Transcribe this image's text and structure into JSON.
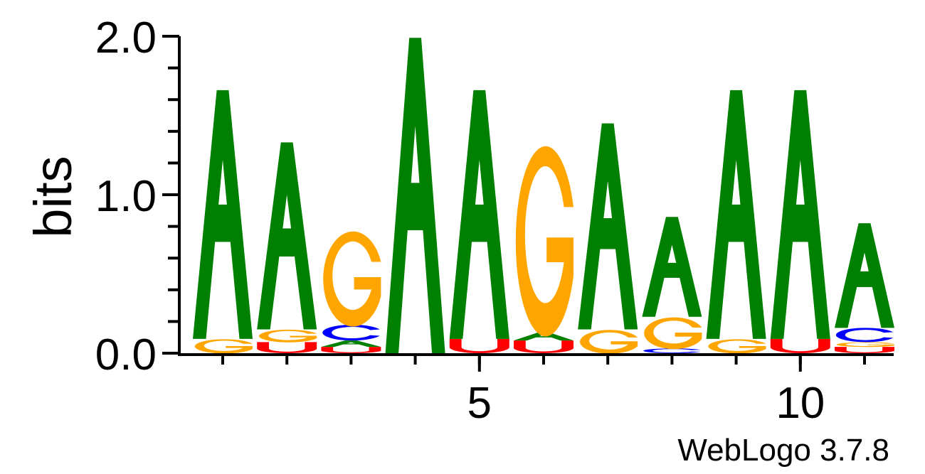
{
  "chart_data": {
    "type": "sequence-logo",
    "ylabel": "bits",
    "ylim": [
      0,
      2
    ],
    "y_ticks": [
      "0.0",
      "1.0",
      "2.0"
    ],
    "x_ticks": [
      {
        "position": 5,
        "label": "5"
      },
      {
        "position": 10,
        "label": "10"
      }
    ],
    "credit": "WebLogo 3.7.8",
    "colors": {
      "A": "#008000",
      "G": "#FFA500",
      "U": "#FF0000",
      "C": "#0000FF"
    },
    "positions": [
      {
        "index": 1,
        "stack": [
          {
            "base": "G",
            "bits": 0.09
          },
          {
            "base": "A",
            "bits": 1.57
          }
        ]
      },
      {
        "index": 2,
        "stack": [
          {
            "base": "U",
            "bits": 0.07
          },
          {
            "base": "G",
            "bits": 0.08
          },
          {
            "base": "A",
            "bits": 1.18
          }
        ]
      },
      {
        "index": 3,
        "stack": [
          {
            "base": "U",
            "bits": 0.04
          },
          {
            "base": "A",
            "bits": 0.04
          },
          {
            "base": "C",
            "bits": 0.1
          },
          {
            "base": "G",
            "bits": 0.6
          }
        ]
      },
      {
        "index": 4,
        "stack": [
          {
            "base": "A",
            "bits": 1.99
          }
        ]
      },
      {
        "index": 5,
        "stack": [
          {
            "base": "U",
            "bits": 0.09
          },
          {
            "base": "A",
            "bits": 1.57
          }
        ]
      },
      {
        "index": 6,
        "stack": [
          {
            "base": "U",
            "bits": 0.08
          },
          {
            "base": "A",
            "bits": 0.05
          },
          {
            "base": "G",
            "bits": 1.2
          }
        ]
      },
      {
        "index": 7,
        "stack": [
          {
            "base": "G",
            "bits": 0.15
          },
          {
            "base": "A",
            "bits": 1.3
          }
        ]
      },
      {
        "index": 8,
        "stack": [
          {
            "base": "C",
            "bits": 0.03
          },
          {
            "base": "G",
            "bits": 0.2
          },
          {
            "base": "A",
            "bits": 0.63
          }
        ]
      },
      {
        "index": 9,
        "stack": [
          {
            "base": "G",
            "bits": 0.09
          },
          {
            "base": "A",
            "bits": 1.57
          }
        ]
      },
      {
        "index": 10,
        "stack": [
          {
            "base": "U",
            "bits": 0.09
          },
          {
            "base": "A",
            "bits": 1.57
          }
        ]
      },
      {
        "index": 11,
        "stack": [
          {
            "base": "U",
            "bits": 0.04
          },
          {
            "base": "G",
            "bits": 0.03
          },
          {
            "base": "C",
            "bits": 0.09
          },
          {
            "base": "A",
            "bits": 0.66
          }
        ]
      }
    ]
  }
}
